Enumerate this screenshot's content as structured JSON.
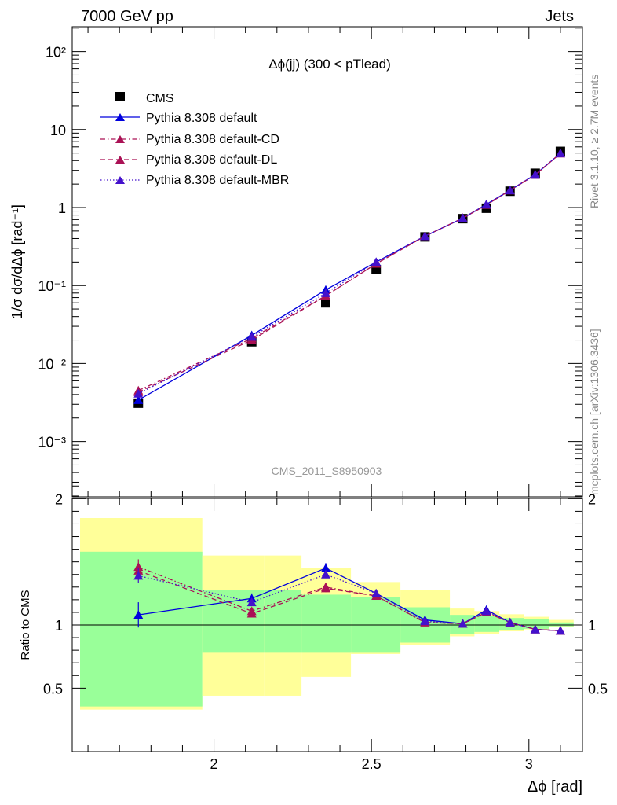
{
  "header": {
    "left": "7000 GeV pp",
    "right": "Jets"
  },
  "side_labels": {
    "rivet": "Rivet 3.1.10, ≥ 2.7M events",
    "mcplots": "mcplots.cern.ch [arXiv:1306.3436]"
  },
  "analysis_tag": "CMS_2011_S8950903",
  "colors": {
    "data": "#000000",
    "default": "#0000dd",
    "cd": "#aa1155",
    "dl": "#aa1155",
    "mbr": "#4411cc",
    "band_inner": "#99ff99",
    "band_outer": "#ffff99"
  },
  "chart_data": [
    {
      "type": "line",
      "panel": "main",
      "title": "Δϕ(jj) (300 < pTlead)",
      "ylabel": "1/σ dσ/dΔϕ [rad⁻¹]",
      "yscale": "log",
      "ylim": [
        0.0002,
        200
      ],
      "xlim": [
        1.55,
        3.17
      ],
      "ytick_labels": [
        "10⁻³",
        "10⁻²",
        "10⁻¹",
        "1",
        "10",
        "10²"
      ],
      "legend_position": "top-left",
      "x": [
        1.76,
        2.12,
        2.355,
        2.515,
        2.67,
        2.79,
        2.865,
        2.94,
        3.02,
        3.1
      ],
      "series": [
        {
          "name": "CMS",
          "key": "data",
          "marker": "square",
          "values": [
            0.0031,
            0.019,
            0.06,
            0.16,
            0.42,
            0.72,
            0.98,
            1.62,
            2.75,
            5.25
          ]
        },
        {
          "name": "Pythia 8.308 default",
          "key": "default",
          "marker": "triangle",
          "dash": "solid",
          "values": [
            0.0034,
            0.023,
            0.088,
            0.2,
            0.43,
            0.73,
            1.1,
            1.67,
            2.65,
            4.95
          ]
        },
        {
          "name": "Pythia 8.308 default-CD",
          "key": "cd",
          "marker": "triangle",
          "dash": "dashdot",
          "values": [
            0.0045,
            0.021,
            0.074,
            0.19,
            0.43,
            0.73,
            1.08,
            1.66,
            2.62,
            4.95
          ]
        },
        {
          "name": "Pythia 8.308 default-DL",
          "key": "dl",
          "marker": "triangle",
          "dash": "dashed",
          "values": [
            0.0043,
            0.02,
            0.074,
            0.19,
            0.43,
            0.73,
            1.08,
            1.66,
            2.62,
            4.95
          ]
        },
        {
          "name": "Pythia 8.308 default-MBR",
          "key": "mbr",
          "marker": "triangle",
          "dash": "dotted",
          "values": [
            0.0041,
            0.022,
            0.08,
            0.2,
            0.43,
            0.73,
            1.09,
            1.66,
            2.63,
            4.97
          ]
        }
      ]
    },
    {
      "type": "line",
      "panel": "ratio",
      "ylabel": "Ratio to CMS",
      "xlabel": "Δϕ [rad]",
      "ylim": [
        0.35,
        2.3
      ],
      "xlim": [
        1.55,
        3.17
      ],
      "ytick_labels": [
        "0.5",
        "1",
        "2"
      ],
      "xtick_labels": [
        "2",
        "2.5",
        "3"
      ],
      "bands": {
        "edges": [
          1.57,
          1.963,
          2.16,
          2.278,
          2.435,
          2.592,
          2.749,
          2.827,
          2.906,
          2.985,
          3.063,
          3.142
        ],
        "inner_low": [
          0.355,
          0.78,
          0.78,
          0.78,
          0.78,
          0.86,
          0.93,
          0.945,
          0.96,
          0.97,
          0.99
        ],
        "inner_high": [
          1.58,
          1.28,
          1.28,
          1.24,
          1.22,
          1.14,
          1.08,
          1.07,
          1.055,
          1.045,
          1.02
        ],
        "outer_low": [
          0.33,
          0.44,
          0.44,
          0.59,
          0.77,
          0.84,
          0.91,
          0.93,
          0.95,
          0.965,
          0.985
        ],
        "outer_high": [
          2.2,
          1.55,
          1.55,
          1.45,
          1.34,
          1.28,
          1.13,
          1.11,
          1.085,
          1.065,
          1.04
        ]
      },
      "x": [
        1.76,
        2.12,
        2.355,
        2.515,
        2.67,
        2.79,
        2.865,
        2.94,
        3.02,
        3.1
      ],
      "series": [
        {
          "name": "Pythia 8.308 default",
          "key": "default",
          "dash": "solid",
          "values": [
            1.08,
            1.21,
            1.45,
            1.25,
            1.04,
            1.01,
            1.12,
            1.02,
            0.965,
            0.955
          ],
          "errors": [
            0.1,
            0.04,
            0.04,
            0.03,
            0.02,
            0.02,
            0.02,
            0.01,
            0.01,
            0.01
          ]
        },
        {
          "name": "Pythia 8.308 default-CD",
          "key": "cd",
          "dash": "dashdot",
          "values": [
            1.46,
            1.11,
            1.3,
            1.23,
            1.02,
            1.01,
            1.1,
            1.02,
            0.965,
            0.955
          ],
          "errors": [
            0.06,
            0.03,
            0.03,
            0.02,
            0.02,
            0.02,
            0.02,
            0.01,
            0.01,
            0.01
          ]
        },
        {
          "name": "Pythia 8.308 default-DL",
          "key": "dl",
          "dash": "dashed",
          "values": [
            1.43,
            1.09,
            1.29,
            1.23,
            1.02,
            1.01,
            1.1,
            1.02,
            0.965,
            0.955
          ],
          "errors": [
            0.06,
            0.03,
            0.03,
            0.02,
            0.02,
            0.02,
            0.02,
            0.01,
            0.01,
            0.01
          ]
        },
        {
          "name": "Pythia 8.308 default-MBR",
          "key": "mbr",
          "dash": "dotted",
          "values": [
            1.39,
            1.18,
            1.4,
            1.25,
            1.03,
            1.01,
            1.11,
            1.02,
            0.965,
            0.955
          ],
          "errors": [
            0.06,
            0.03,
            0.03,
            0.02,
            0.02,
            0.02,
            0.02,
            0.01,
            0.01,
            0.01
          ]
        }
      ]
    }
  ]
}
